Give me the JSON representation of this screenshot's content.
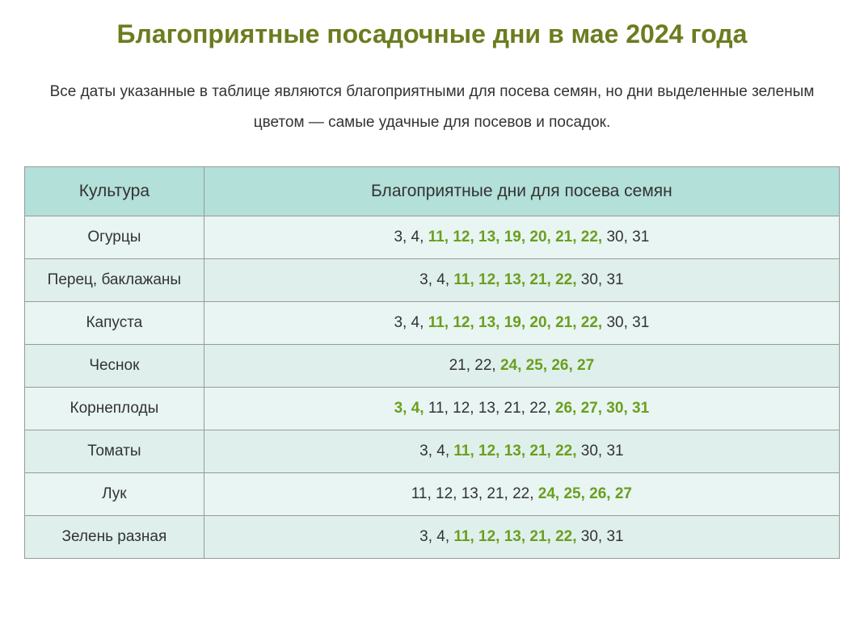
{
  "title": "Благоприятные посадочные дни в мае 2024 года",
  "subtitle": "Все даты указанные в таблице являются благоприятными для посева семян, но дни выделенные зеленым цветом — самые удачные для посевов и посадок.",
  "table": {
    "headers": {
      "culture": "Культура",
      "days": "Благоприятные дни для посева семян"
    },
    "rows": [
      {
        "culture": "Огурцы",
        "segments": [
          {
            "text": "3, 4, ",
            "highlight": false
          },
          {
            "text": "11, 12, 13, 19, 20, 21, 22,",
            "highlight": true
          },
          {
            "text": " 30, 31",
            "highlight": false
          }
        ]
      },
      {
        "culture": "Перец, баклажаны",
        "segments": [
          {
            "text": "3, 4, ",
            "highlight": false
          },
          {
            "text": "11, 12, 13, 21, 22,",
            "highlight": true
          },
          {
            "text": " 30, 31",
            "highlight": false
          }
        ]
      },
      {
        "culture": "Капуста",
        "segments": [
          {
            "text": "3, 4, ",
            "highlight": false
          },
          {
            "text": "11, 12, 13, 19, 20, 21, 22,",
            "highlight": true
          },
          {
            "text": " 30, 31",
            "highlight": false
          }
        ]
      },
      {
        "culture": "Чеснок",
        "segments": [
          {
            "text": "21, 22, ",
            "highlight": false
          },
          {
            "text": "24, 25, 26, 27",
            "highlight": true
          }
        ]
      },
      {
        "culture": "Корнеплоды",
        "segments": [
          {
            "text": "3, 4,",
            "highlight": true
          },
          {
            "text": " 11, 12, 13, 21, 22, ",
            "highlight": false
          },
          {
            "text": "26, 27, 30, 31",
            "highlight": true
          }
        ]
      },
      {
        "culture": "Томаты",
        "segments": [
          {
            "text": "3, 4, ",
            "highlight": false
          },
          {
            "text": "11, 12, 13, 21, 22,",
            "highlight": true
          },
          {
            "text": " 30, 31",
            "highlight": false
          }
        ]
      },
      {
        "culture": "Лук",
        "segments": [
          {
            "text": "11, 12, 13, 21, 22, ",
            "highlight": false
          },
          {
            "text": "24, 25, 26, 27",
            "highlight": true
          }
        ]
      },
      {
        "culture": "Зелень разная",
        "segments": [
          {
            "text": "3, 4, ",
            "highlight": false
          },
          {
            "text": "11, 12, 13, 21, 22,",
            "highlight": true
          },
          {
            "text": " 30, 31",
            "highlight": false
          }
        ]
      }
    ]
  },
  "colors": {
    "title_color": "#6b7d1f",
    "highlight_color": "#6b9e1f",
    "text_color": "#333333",
    "header_bg": "#b3e0d9",
    "row_odd_bg": "#e8f5f2",
    "row_even_bg": "#dff0ec",
    "border_color": "#999999"
  }
}
